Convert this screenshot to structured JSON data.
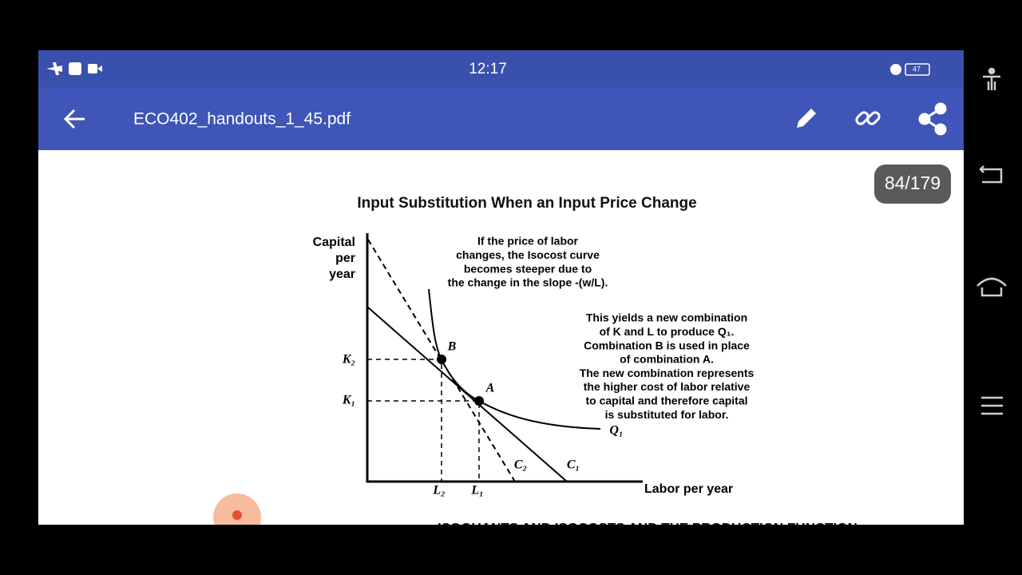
{
  "status_bar": {
    "time": "12:17",
    "battery": "47"
  },
  "toolbar": {
    "title": "ECO402_handouts_1_45.pdf"
  },
  "page_indicator": "84/179",
  "figure": {
    "title": "Input Substitution When an Input Price Change",
    "y_axis_label": [
      "Capital",
      "per",
      "year"
    ],
    "x_axis_label": "Labor per year",
    "annotation_1": [
      "If the price of labor",
      "changes, the Isocost curve",
      "becomes steeper due to",
      "the change in the slope -(w/L)."
    ],
    "annotation_2": [
      "This yields a new combination",
      "of K and L to produce Q₁.",
      "Combination B is used in place",
      "of combination A.",
      "The new combination represents",
      "the higher cost of labor relative",
      "to capital and therefore capital",
      "is substituted for labor."
    ],
    "labels": {
      "k2": "K₂",
      "k1": "K₁",
      "l2": "L₂",
      "l1": "L₁",
      "b": "B",
      "a": "A",
      "q1": "Q₁",
      "c2": "C₂",
      "c1": "C₁"
    }
  },
  "next_heading": "ISOQUANTS AND ISOCOSTS AND THE PRODUCTION FUNCTION"
}
